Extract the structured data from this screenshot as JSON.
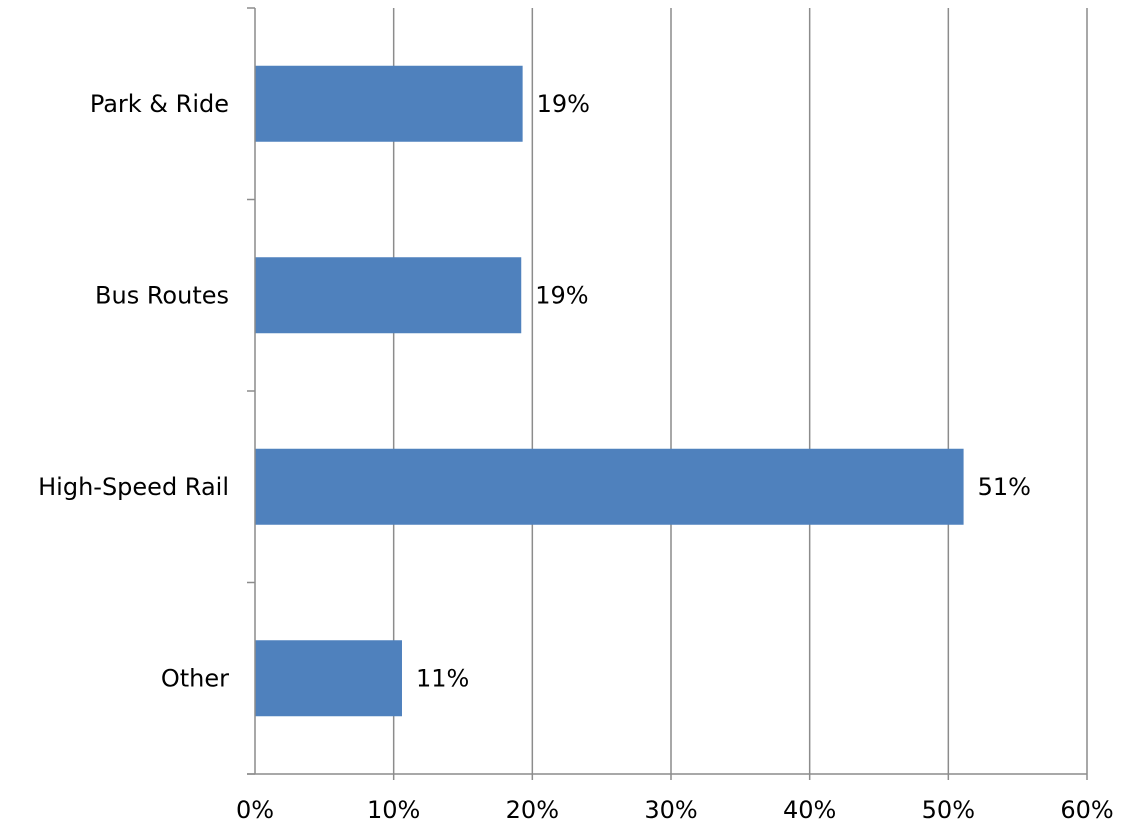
{
  "chart_data": {
    "type": "bar",
    "orientation": "horizontal",
    "categories": [
      "Park & Ride",
      "Bus Routes",
      "High-Speed Rail",
      "Other"
    ],
    "values": [
      19.3,
      19.2,
      51.1,
      10.6
    ],
    "data_labels": [
      "19%",
      "19%",
      "51%",
      "11%"
    ],
    "xlim": [
      0,
      60
    ],
    "x_ticks": [
      0,
      10,
      20,
      30,
      40,
      50,
      60
    ],
    "x_tick_labels": [
      "0%",
      "10%",
      "20%",
      "30%",
      "40%",
      "50%",
      "60%"
    ],
    "grid": "vertical",
    "legend": "none",
    "bar_color": "#4f81bd",
    "grid_color": "#8c8c8c"
  }
}
